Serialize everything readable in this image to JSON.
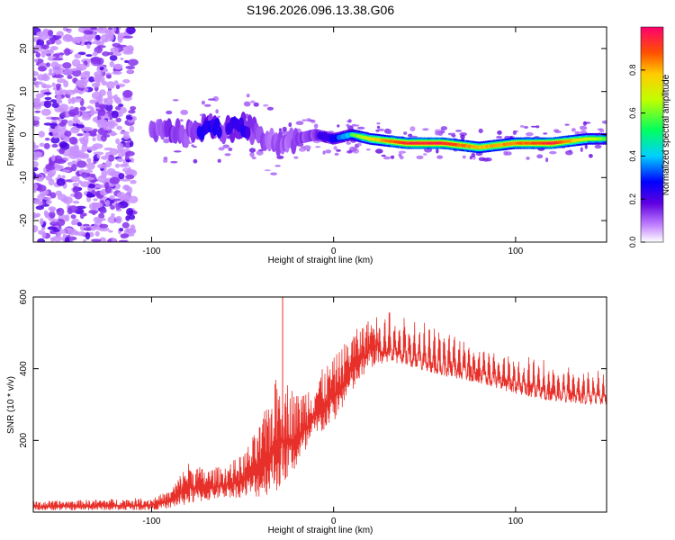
{
  "title": "S196.2026.096.13.38.G06",
  "chart_data": [
    {
      "type": "heatmap",
      "name": "spectrogram",
      "xlabel": "Height of straight line (km)",
      "ylabel": "Frequency (Hz)",
      "xlim": [
        -165,
        150
      ],
      "ylim": [
        -25,
        25
      ],
      "xticks": [
        -100,
        0,
        100
      ],
      "yticks": [
        -20,
        -10,
        0,
        10,
        20
      ],
      "colorbar": {
        "label": "Normalized spectral amplitude",
        "range": [
          0,
          1
        ],
        "ticks": [
          0.0,
          0.2,
          0.4,
          0.6,
          0.8
        ]
      },
      "ridge": {
        "x": [
          -100,
          -90,
          -80,
          -70,
          -60,
          -50,
          -40,
          -30,
          -20,
          -10,
          0,
          10,
          20,
          40,
          60,
          80,
          100,
          120,
          140,
          150
        ],
        "frequency": [
          0,
          1,
          0,
          2,
          1,
          2,
          0,
          -2,
          -1,
          0,
          -1,
          0,
          -1,
          -2,
          -2,
          -3,
          -2,
          -2,
          -1,
          -1
        ],
        "amplitude": [
          0.3,
          0.4,
          0.35,
          0.45,
          0.4,
          0.45,
          0.35,
          0.3,
          0.35,
          0.4,
          0.45,
          0.55,
          0.75,
          0.95,
          0.95,
          0.8,
          0.85,
          0.95,
          0.7,
          0.6
        ]
      }
    },
    {
      "type": "line",
      "name": "snr",
      "xlabel": "Height of straight line (km)",
      "ylabel": "SNR (10 * v/v)",
      "xlim": [
        -165,
        150
      ],
      "ylim": [
        0,
        600
      ],
      "xticks": [
        -100,
        0,
        100
      ],
      "yticks": [
        200,
        400,
        600
      ],
      "color": "#e8302a",
      "envelope": {
        "x": [
          -165,
          -100,
          -90,
          -80,
          -70,
          -60,
          -50,
          -40,
          -30,
          -20,
          -10,
          0,
          10,
          20,
          30,
          40,
          60,
          80,
          100,
          120,
          140,
          150
        ],
        "min": [
          5,
          5,
          10,
          20,
          30,
          40,
          40,
          40,
          60,
          120,
          200,
          250,
          330,
          400,
          420,
          410,
          380,
          360,
          330,
          310,
          300,
          300
        ],
        "max": [
          30,
          40,
          60,
          140,
          120,
          130,
          160,
          250,
          400,
          330,
          380,
          430,
          500,
          540,
          570,
          550,
          520,
          480,
          440,
          420,
          400,
          400
        ]
      }
    }
  ]
}
